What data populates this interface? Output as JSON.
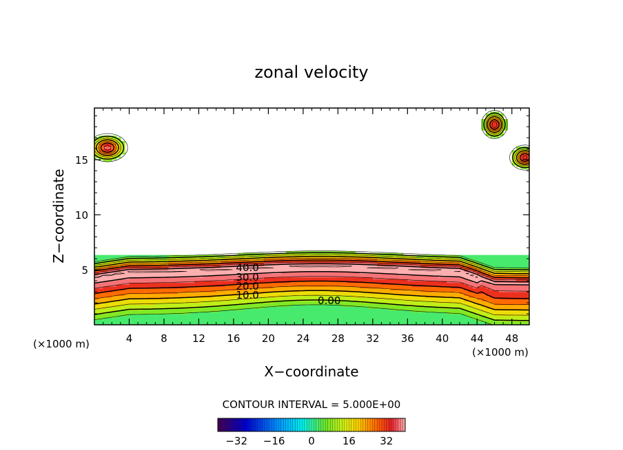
{
  "chart_data": {
    "type": "contour",
    "title": "zonal velocity",
    "xlabel": "X−coordinate",
    "ylabel": "Z−coordinate",
    "x_unit_left": "(×1000 m)",
    "x_unit_right": "(×1000 m)",
    "xlim": [
      0,
      50
    ],
    "ylim": [
      0,
      19.7
    ],
    "x_ticks": [
      4,
      8,
      12,
      16,
      20,
      24,
      28,
      32,
      36,
      40,
      44,
      48
    ],
    "x_tick_labels": [
      "4",
      "8",
      "12",
      "16",
      "20",
      "24",
      "28",
      "32",
      "36",
      "40",
      "44",
      "48"
    ],
    "y_ticks": [
      5,
      10,
      15
    ],
    "y_tick_labels": [
      "5",
      "10",
      "15"
    ],
    "contour_labels": [
      {
        "text": "40.0",
        "x": 17.6,
        "y": 5.2
      },
      {
        "text": "30.0",
        "x": 17.6,
        "y": 4.3
      },
      {
        "text": "20.0",
        "x": 17.6,
        "y": 3.5
      },
      {
        "text": "10.0",
        "x": 17.6,
        "y": 2.7
      },
      {
        "text": "0.00",
        "x": 27.0,
        "y": 2.2
      }
    ],
    "contour_interval_label": "CONTOUR INTERVAL = 5.000E+00",
    "colorbar": {
      "min": -40,
      "max": 40,
      "tick_values": [
        -32,
        -16,
        0,
        16,
        32
      ],
      "tick_labels": [
        "−32",
        "−16",
        "0",
        "16",
        "32"
      ]
    }
  }
}
